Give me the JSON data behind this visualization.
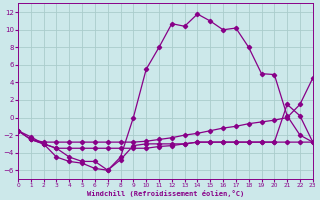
{
  "background_color": "#cce8ea",
  "grid_color": "#aacccc",
  "line_color": "#880088",
  "xlim": [
    0,
    23
  ],
  "ylim": [
    -7,
    13
  ],
  "yticks": [
    -6,
    -4,
    -2,
    0,
    2,
    4,
    6,
    8,
    10,
    12
  ],
  "xticks": [
    0,
    1,
    2,
    3,
    4,
    5,
    6,
    7,
    8,
    9,
    10,
    11,
    12,
    13,
    14,
    15,
    16,
    17,
    18,
    19,
    20,
    21,
    22,
    23
  ],
  "xlabel": "Windchill (Refroidissement éolien,°C)",
  "curve1_x": [
    0,
    1,
    2,
    3,
    4,
    5,
    6,
    7,
    8,
    9,
    10,
    11,
    12,
    13,
    14,
    15,
    16,
    17,
    18,
    19,
    20,
    21,
    22,
    23
  ],
  "curve1_y": [
    -1.5,
    -2.2,
    -3.0,
    -4.5,
    -5.0,
    -5.2,
    -5.8,
    -6.0,
    -4.5,
    0.0,
    5.5,
    8.0,
    10.7,
    10.4,
    11.8,
    11.0,
    10.0,
    10.2,
    8.0,
    5.0,
    4.9,
    0.2,
    -2.0,
    -2.8
  ],
  "curve2_x": [
    0,
    1,
    2,
    3,
    4,
    5,
    6,
    7,
    8,
    9,
    10,
    11,
    12,
    13,
    14,
    15,
    16,
    17,
    18,
    19,
    20,
    21,
    22,
    23
  ],
  "curve2_y": [
    -1.5,
    -2.5,
    -2.8,
    -2.8,
    -2.8,
    -2.8,
    -2.8,
    -2.8,
    -2.8,
    -2.8,
    -2.7,
    -2.5,
    -2.3,
    -2.0,
    -1.8,
    -1.5,
    -1.2,
    -1.0,
    -0.7,
    -0.5,
    -0.3,
    0.0,
    1.5,
    4.5
  ],
  "curve3_x": [
    0,
    1,
    2,
    3,
    4,
    5,
    6,
    7,
    8,
    9,
    10,
    11,
    12,
    13,
    14,
    15,
    16,
    17,
    18,
    19,
    20,
    21,
    22,
    23
  ],
  "curve3_y": [
    -1.5,
    -2.5,
    -3.0,
    -3.5,
    -3.5,
    -3.5,
    -3.5,
    -3.5,
    -3.5,
    -3.5,
    -3.5,
    -3.3,
    -3.2,
    -3.0,
    -2.8,
    -2.8,
    -2.8,
    -2.8,
    -2.8,
    -2.8,
    -2.8,
    -2.8,
    -2.8,
    -2.8
  ],
  "curve4_x": [
    1,
    2,
    3,
    4,
    5,
    6,
    7,
    8,
    9,
    10,
    11,
    12,
    13,
    14,
    15,
    16,
    17,
    18,
    19,
    20,
    21,
    22,
    23
  ],
  "curve4_y": [
    -2.5,
    -3.0,
    -3.5,
    -4.5,
    -5.0,
    -5.0,
    -6.0,
    -4.8,
    -3.2,
    -3.0,
    -3.0,
    -3.0,
    -3.0,
    -2.8,
    -2.8,
    -2.8,
    -2.8,
    -2.8,
    -2.8,
    -2.8,
    1.5,
    0.2,
    -2.8
  ]
}
